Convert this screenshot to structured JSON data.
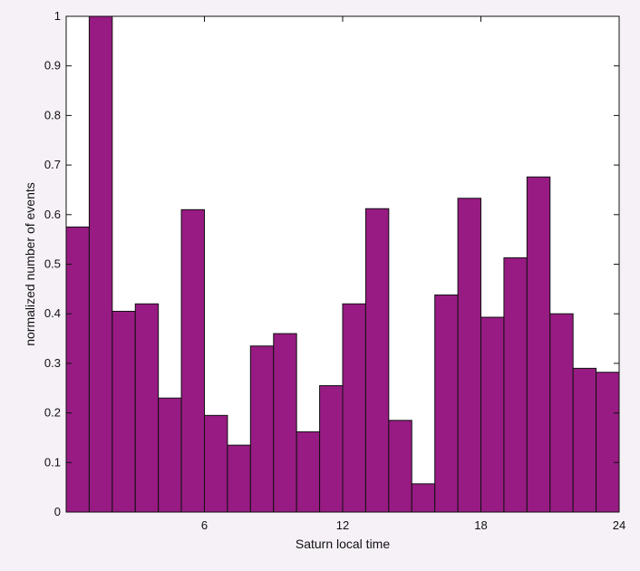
{
  "chart_data": {
    "type": "bar",
    "xlabel": "Saturn local time",
    "ylabel": "normalized number of events",
    "xlim": [
      0,
      24
    ],
    "ylim": [
      0,
      1
    ],
    "x_ticks": [
      6,
      12,
      18,
      24
    ],
    "y_ticks": [
      0,
      0.1,
      0.2,
      0.3,
      0.4,
      0.5,
      0.6,
      0.7,
      0.8,
      0.9,
      1
    ],
    "bin_width": 1,
    "bin_starts": [
      0,
      1,
      2,
      3,
      4,
      5,
      6,
      7,
      8,
      9,
      10,
      11,
      12,
      13,
      14,
      15,
      16,
      17,
      18,
      19,
      20,
      21,
      22,
      23
    ],
    "values": [
      0.575,
      1.0,
      0.405,
      0.42,
      0.23,
      0.61,
      0.195,
      0.135,
      0.335,
      0.36,
      0.162,
      0.255,
      0.42,
      0.612,
      0.185,
      0.057,
      0.438,
      0.633,
      0.393,
      0.513,
      0.676,
      0.4,
      0.29,
      0.282
    ],
    "bar_color": "#971b82",
    "bar_edge_color": "#111111",
    "grid": false,
    "background": "#f5f1f6",
    "plot_background": "#ffffff"
  }
}
